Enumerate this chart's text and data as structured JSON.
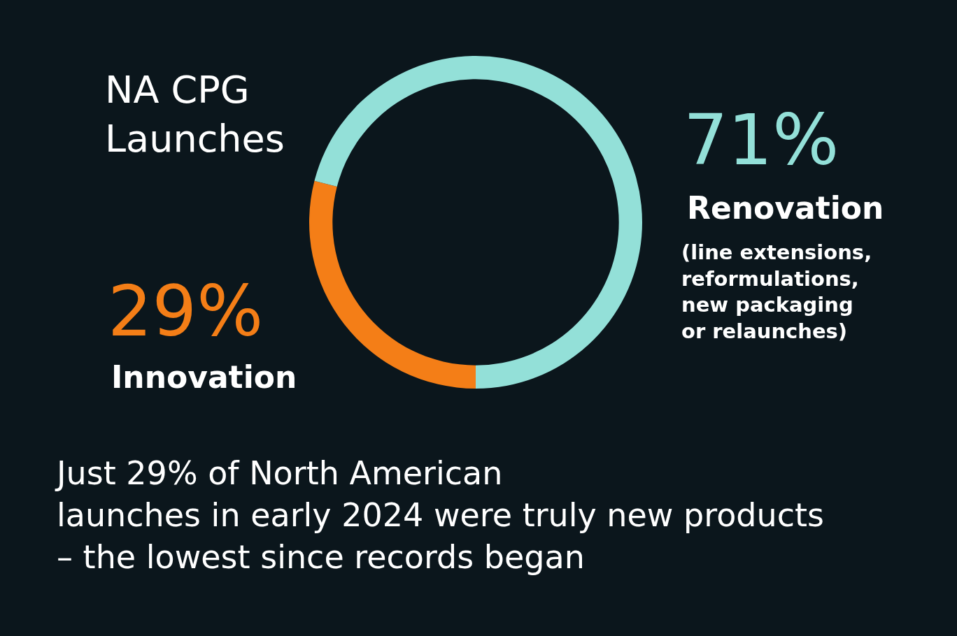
{
  "chart_data": {
    "type": "donut",
    "title": "NA CPG\nLaunches",
    "categories": [
      "Innovation",
      "Renovation"
    ],
    "values": [
      29,
      71
    ],
    "colors": [
      "#f47e17",
      "#93e0d8"
    ],
    "value_labels": [
      "29%",
      "71%"
    ],
    "annotations": [
      "(line extensions,\nreformulations,\nnew packaging\nor relaunches)",
      "Just 29% of North American\nlaunches in early 2024 were truly new products\n– the lowest since records began"
    ],
    "legend": false
  }
}
